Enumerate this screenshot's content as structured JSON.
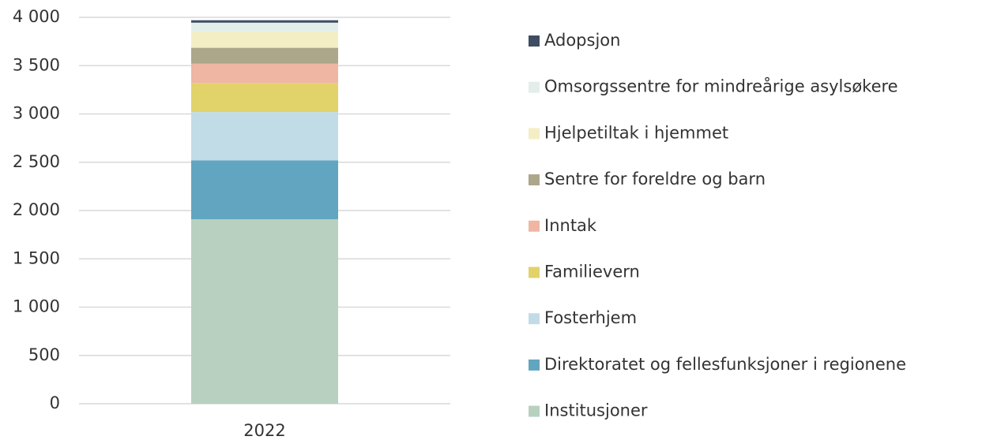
{
  "chart_data": {
    "type": "stacked_bar",
    "categories": [
      "2022"
    ],
    "series": [
      {
        "name": "Institusjoner",
        "color": "#b8d0c0",
        "values": [
          1910
        ]
      },
      {
        "name": "Direktoratet og fellesfunksjoner i regionene",
        "color": "#62a5c0",
        "values": [
          610
        ]
      },
      {
        "name": "Fosterhjem",
        "color": "#c2dce7",
        "values": [
          500
        ]
      },
      {
        "name": "Familievern",
        "color": "#e2d26a",
        "values": [
          300
        ]
      },
      {
        "name": "Inntak",
        "color": "#efb6a3",
        "values": [
          200
        ]
      },
      {
        "name": "Sentre for foreldre og barn",
        "color": "#aca68a",
        "values": [
          165
        ]
      },
      {
        "name": "Hjelpetiltak i hjemmet",
        "color": "#f4eec4",
        "values": [
          170
        ]
      },
      {
        "name": "Omsorgssentre for mindreårige asylsøkere",
        "color": "#e3eeea",
        "values": [
          90
        ]
      },
      {
        "name": "Adopsjon",
        "color": "#3f4d62",
        "values": [
          25
        ]
      }
    ],
    "ylim": [
      0,
      4000
    ],
    "yticks": [
      0,
      500,
      {
        "value": 1000,
        "label": "1 000"
      },
      {
        "value": 1500,
        "label": "1 500"
      },
      {
        "value": 2000,
        "label": "2 000"
      },
      {
        "value": 2500,
        "label": "2 500"
      },
      {
        "value": 3000,
        "label": "3 000"
      },
      {
        "value": 3500,
        "label": "3 500"
      },
      {
        "value": 4000,
        "label": "4 000"
      }
    ],
    "grid": true,
    "legend": "right"
  }
}
